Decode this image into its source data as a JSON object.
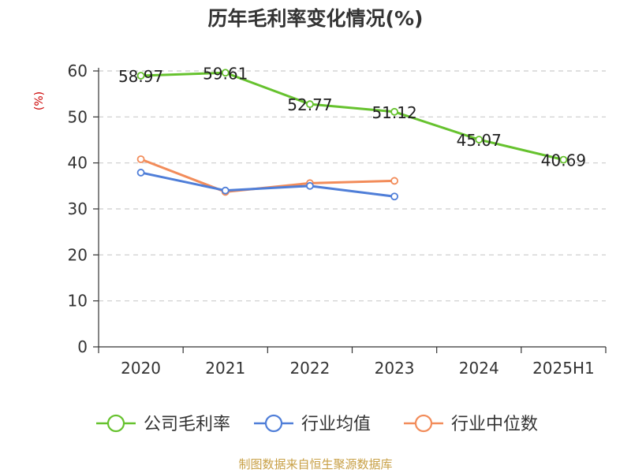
{
  "chart_data": {
    "type": "line",
    "title": "历年毛利率变化情况(%)",
    "ylabel": "(%)",
    "categories": [
      "2020",
      "2021",
      "2022",
      "2023",
      "2024",
      "2025H1"
    ],
    "ylim": [
      0,
      60
    ],
    "yticks": [
      0,
      10,
      20,
      30,
      40,
      50,
      60
    ],
    "grid": true,
    "legend_position": "bottom",
    "series": [
      {
        "name": "公司毛利率",
        "color": "#66c22e",
        "values": [
          58.97,
          59.61,
          52.77,
          51.12,
          45.07,
          40.69
        ],
        "labels": [
          "58.97",
          "59.61",
          "52.77",
          "51.12",
          "45.07",
          "40.69"
        ]
      },
      {
        "name": "行业均值",
        "color": "#4f7ed8",
        "values": [
          37.9,
          34.0,
          35.0,
          32.7,
          null,
          null
        ]
      },
      {
        "name": "行业中位数",
        "color": "#f28c5a",
        "values": [
          40.8,
          33.7,
          35.6,
          36.1,
          null,
          null
        ]
      }
    ],
    "source": "制图数据来自恒生聚源数据库"
  }
}
